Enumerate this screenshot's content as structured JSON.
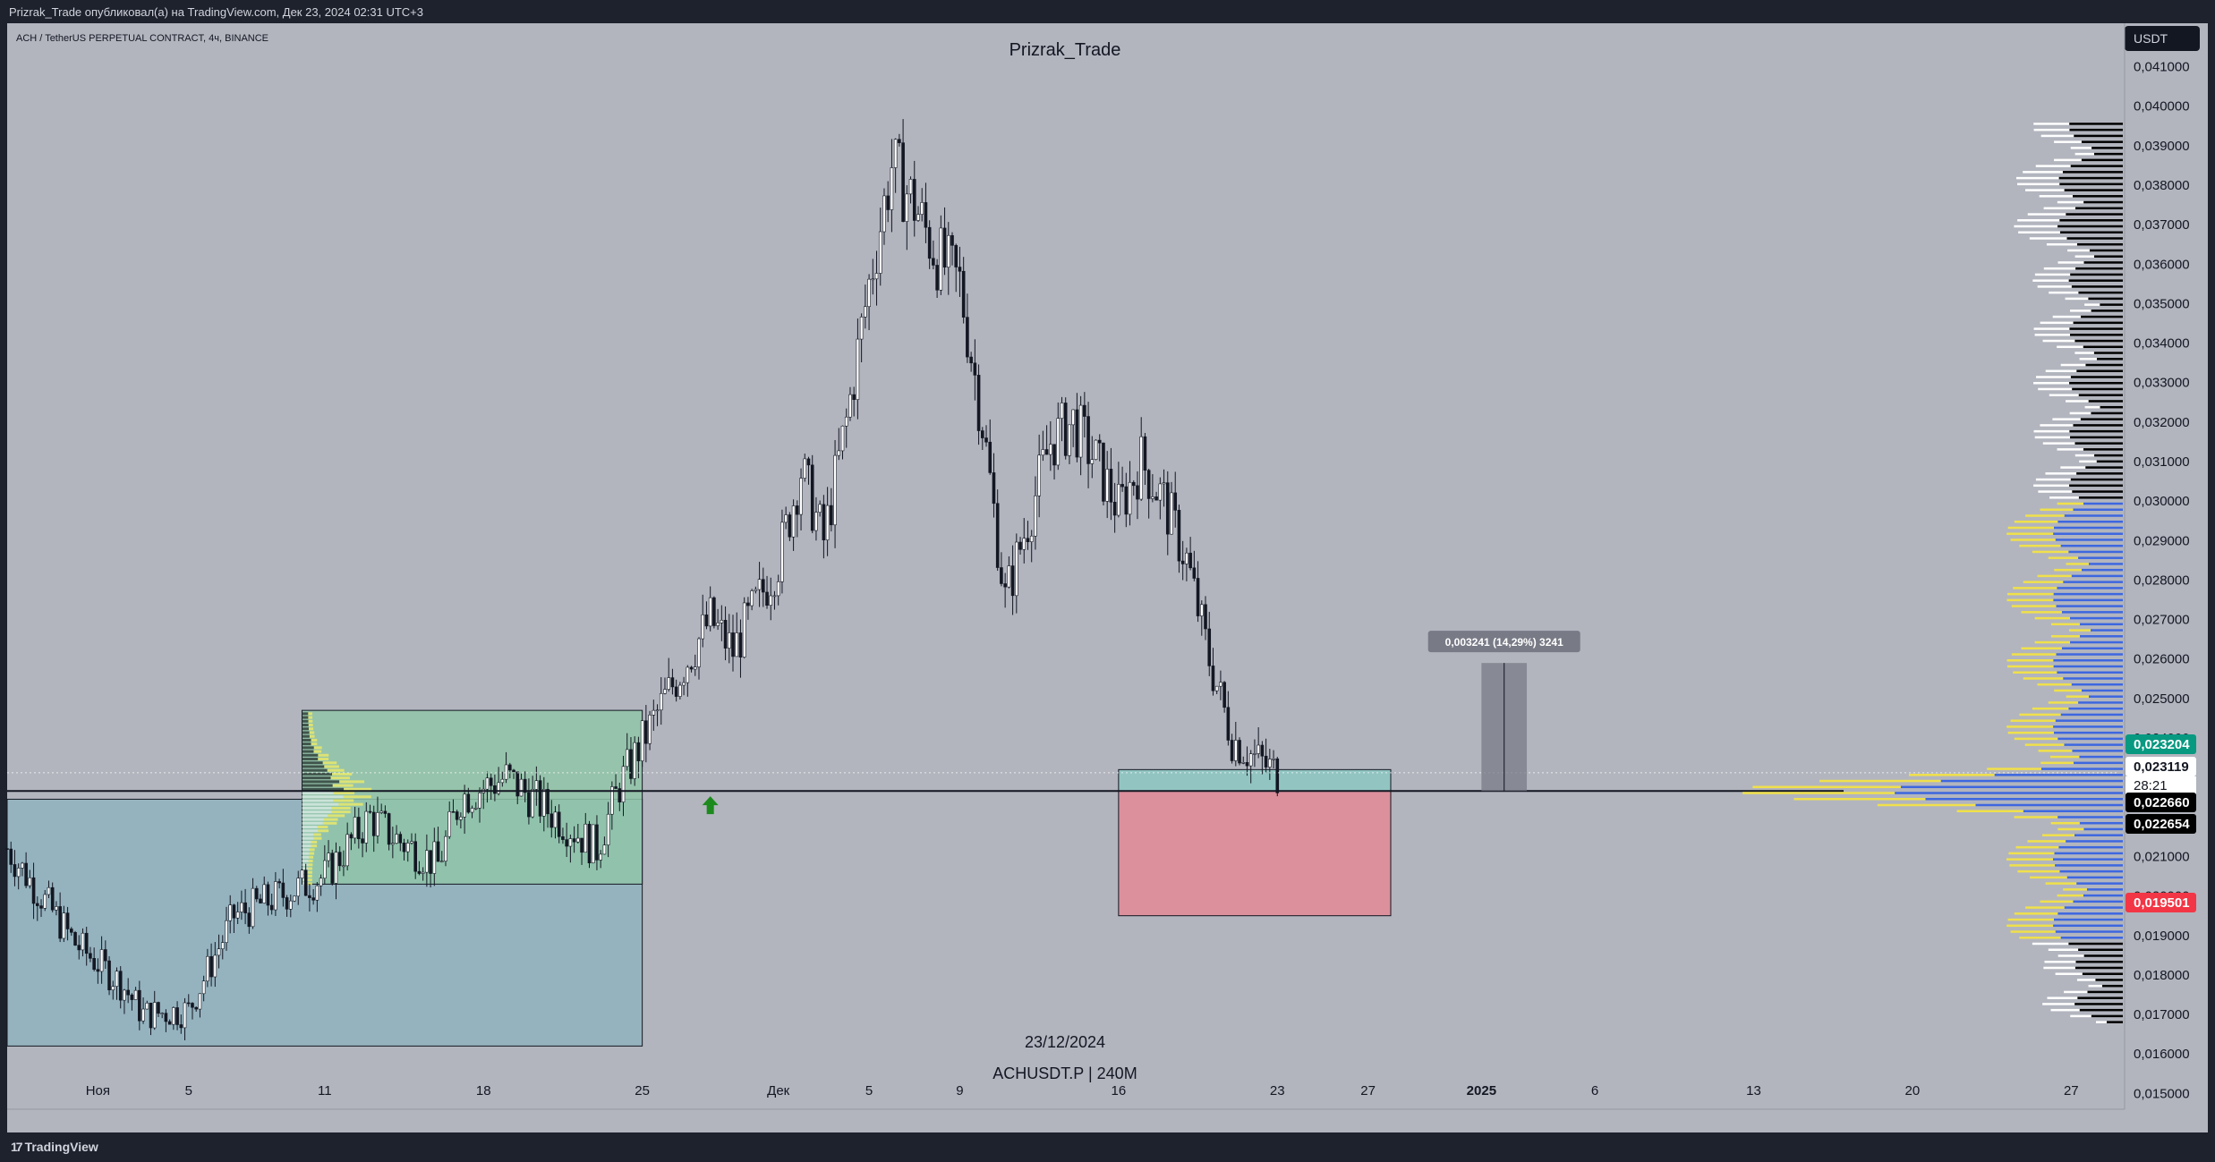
{
  "header": {
    "published_by": "Prizrak_Trade опубликовал(а) на TradingView.com, Дек 23, 2024 02:31 UTC+3",
    "symbol_line": "ACH / TetherUS PERPETUAL CONTRACT, 4ч, BINANCE",
    "author_watermark": "Prizrak_Trade",
    "currency": "USDT"
  },
  "footer": {
    "brand": "TradingView"
  },
  "chart_data": {
    "type": "candlestick",
    "symbol": "ACHUSDT.P",
    "interval": "240M",
    "date_watermark": "23/12/2024",
    "watermark_line": "ACHUSDT.P | 240M",
    "y_axis": {
      "ylim": [
        0.0146,
        0.0421
      ],
      "ticks": [
        "0,041000",
        "0,040000",
        "0,039000",
        "0,038000",
        "0,037000",
        "0,036000",
        "0,035000",
        "0,034000",
        "0,033000",
        "0,032000",
        "0,031000",
        "0,030000",
        "0,029000",
        "0,028000",
        "0,027000",
        "0,026000",
        "0,025000",
        "0,024000",
        "0,021000",
        "0,020000",
        "0,019000",
        "0,018000",
        "0,017000",
        "0,016000",
        "0,015000"
      ],
      "tick_values": [
        0.041,
        0.04,
        0.039,
        0.038,
        0.037,
        0.036,
        0.035,
        0.034,
        0.033,
        0.032,
        0.031,
        0.03,
        0.029,
        0.028,
        0.027,
        0.026,
        0.025,
        0.024,
        0.021,
        0.02,
        0.019,
        0.018,
        0.017,
        0.016,
        0.015
      ]
    },
    "x_axis": {
      "xlim": [
        "2024-10-28",
        "2025-01-29"
      ],
      "ticks": [
        {
          "label": "Ноя",
          "date": "2024-11-01"
        },
        {
          "label": "5",
          "date": "2024-11-05"
        },
        {
          "label": "11",
          "date": "2024-11-11"
        },
        {
          "label": "18",
          "date": "2024-11-18"
        },
        {
          "label": "25",
          "date": "2024-11-25"
        },
        {
          "label": "Дек",
          "date": "2024-12-01"
        },
        {
          "label": "5",
          "date": "2024-12-05"
        },
        {
          "label": "9",
          "date": "2024-12-09"
        },
        {
          "label": "16",
          "date": "2024-12-16"
        },
        {
          "label": "23",
          "date": "2024-12-23"
        },
        {
          "label": "27",
          "date": "2024-12-27"
        },
        {
          "label": "2025",
          "date": "2025-01-01",
          "bold": true
        },
        {
          "label": "6",
          "date": "2025-01-06"
        },
        {
          "label": "13",
          "date": "2025-01-13"
        },
        {
          "label": "20",
          "date": "2025-01-20"
        },
        {
          "label": "27",
          "date": "2025-01-27"
        }
      ]
    },
    "price_labels": [
      {
        "text": "0,023204",
        "value": 0.023204,
        "bg": "#089981",
        "color": "#ffffff"
      },
      {
        "text": "0,023119",
        "value": 0.023119,
        "bg": "#ffffff",
        "color": "#131722",
        "sub": "28:21"
      },
      {
        "text": "0,022660",
        "value": 0.02266,
        "bg": "#000000",
        "color": "#ffffff"
      },
      {
        "text": "0,022654",
        "value": 0.022654,
        "bg": "#000000",
        "color": "#ffffff"
      },
      {
        "text": "0,019501",
        "value": 0.019501,
        "bg": "#f23645",
        "color": "#ffffff"
      }
    ],
    "price_path": [
      [
        "2024-10-28",
        0.0212
      ],
      [
        "2024-10-31",
        0.0188
      ],
      [
        "2024-11-02",
        0.0178
      ],
      [
        "2024-11-03",
        0.017
      ],
      [
        "2024-11-05",
        0.0171
      ],
      [
        "2024-11-07",
        0.0195
      ],
      [
        "2024-11-09",
        0.02
      ],
      [
        "2024-11-11",
        0.0205
      ],
      [
        "2024-11-13",
        0.022
      ],
      [
        "2024-11-14",
        0.0215
      ],
      [
        "2024-11-16",
        0.0208
      ],
      [
        "2024-11-17",
        0.0225
      ],
      [
        "2024-11-19",
        0.023
      ],
      [
        "2024-11-21",
        0.0221
      ],
      [
        "2024-11-23",
        0.0212
      ],
      [
        "2024-11-24",
        0.0228
      ],
      [
        "2024-11-26",
        0.025
      ],
      [
        "2024-11-28",
        0.027
      ],
      [
        "2024-11-29",
        0.0262
      ],
      [
        "2024-12-01",
        0.0285
      ],
      [
        "2024-12-02",
        0.0308
      ],
      [
        "2024-12-03",
        0.029
      ],
      [
        "2024-12-04",
        0.032
      ],
      [
        "2024-12-05",
        0.0355
      ],
      [
        "2024-12-06",
        0.0385
      ],
      [
        "2024-12-07",
        0.0375
      ],
      [
        "2024-12-08",
        0.0362
      ],
      [
        "2024-12-09",
        0.0355
      ],
      [
        "2024-12-10",
        0.032
      ],
      [
        "2024-12-11",
        0.0275
      ],
      [
        "2024-12-12",
        0.0295
      ],
      [
        "2024-12-13",
        0.0315
      ],
      [
        "2024-12-14",
        0.032
      ],
      [
        "2024-12-15",
        0.031
      ],
      [
        "2024-12-16",
        0.0298
      ],
      [
        "2024-12-17",
        0.031
      ],
      [
        "2024-12-18",
        0.03
      ],
      [
        "2024-12-19",
        0.0285
      ],
      [
        "2024-12-20",
        0.026
      ],
      [
        "2024-12-21",
        0.024
      ],
      [
        "2024-12-22",
        0.0235
      ],
      [
        "2024-12-23",
        0.0231
      ]
    ],
    "horizontal_line": {
      "value": 0.02266
    },
    "rectangles": [
      {
        "name": "range-box-blue",
        "x0": "2024-10-28",
        "x1": "2024-11-25",
        "y0": 0.0162,
        "y1": 0.02245,
        "fill": "#8fb3bf"
      },
      {
        "name": "range-box-green",
        "x0": "2024-11-10",
        "x1": "2024-11-25",
        "y0": 0.0203,
        "y1": 0.0247,
        "fill": "#90c6a8"
      },
      {
        "name": "zone-teal",
        "x0": "2024-12-16",
        "x1": "2024-12-28",
        "y0": 0.02266,
        "y1": 0.0232,
        "fill": "#8cc8c3"
      },
      {
        "name": "zone-red",
        "x0": "2024-12-16",
        "x1": "2024-12-28",
        "y0": 0.0195,
        "y1": 0.02266,
        "fill": "#e38a96"
      }
    ],
    "measure": {
      "label": "0,003241 (14,29%) 3241",
      "x0": "2025-01-01",
      "x1": "2025-01-03",
      "y0": 0.02266,
      "y1": 0.0259
    },
    "arrow_marker": {
      "date": "2024-11-28",
      "value": 0.0223,
      "color": "#1d8a1d"
    },
    "volume_profile_colors": {
      "up": "#f0e04a",
      "down": "#3d67e0",
      "upper_up": "#ffffff",
      "upper_down": "#000000"
    }
  }
}
